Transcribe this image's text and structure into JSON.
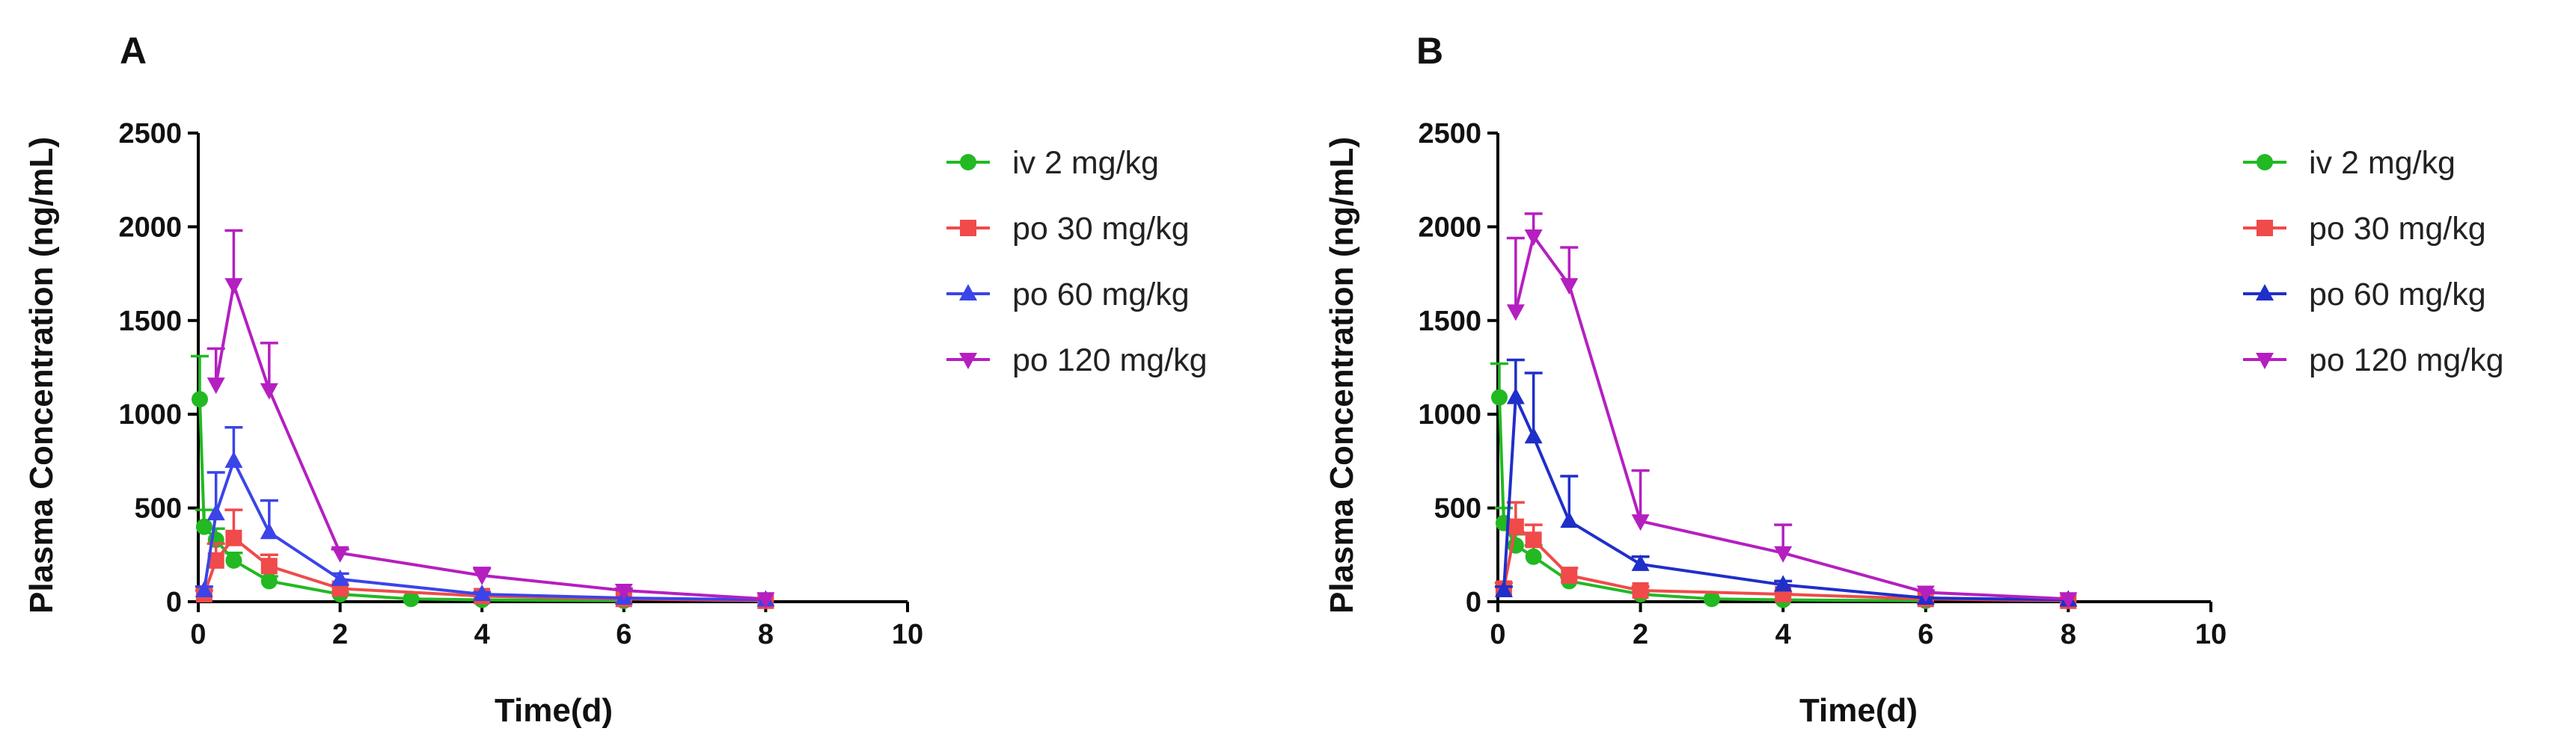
{
  "chart_data": [
    {
      "type": "line",
      "panel_label": "A",
      "xlabel": "Time(d)",
      "ylabel": "Plasma Concentration (ng/mL)",
      "xlim": [
        0,
        10
      ],
      "ylim": [
        0,
        2500
      ],
      "xticks": [
        "0",
        "2",
        "4",
        "6",
        "8",
        "10"
      ],
      "yticks": [
        "0",
        "500",
        "1000",
        "1500",
        "2000",
        "2500"
      ],
      "legend_position": "right",
      "series": [
        {
          "name": "iv 2 mg/kg",
          "color": "#22b922",
          "marker": "circle",
          "x": [
            0.021,
            0.083,
            0.25,
            0.5,
            1,
            2,
            3,
            4,
            6
          ],
          "y": [
            1080,
            400,
            330,
            220,
            110,
            40,
            15,
            10,
            5
          ],
          "err": [
            230,
            90,
            60,
            40,
            25,
            10,
            0,
            0,
            0
          ]
        },
        {
          "name": "po 30 mg/kg",
          "color": "#f04a4a",
          "marker": "square",
          "x": [
            0.083,
            0.25,
            0.5,
            1,
            2,
            4,
            6,
            8
          ],
          "y": [
            40,
            220,
            340,
            190,
            70,
            30,
            15,
            5
          ],
          "err": [
            20,
            90,
            150,
            60,
            20,
            10,
            0,
            0
          ]
        },
        {
          "name": "po 60 mg/kg",
          "color": "#3b44e8",
          "marker": "triangle-up",
          "x": [
            0.083,
            0.25,
            0.5,
            1,
            2,
            4,
            6,
            8
          ],
          "y": [
            60,
            470,
            750,
            370,
            120,
            40,
            20,
            10
          ],
          "err": [
            20,
            220,
            180,
            170,
            30,
            10,
            0,
            0
          ]
        },
        {
          "name": "po 120 mg/kg",
          "color": "#b51fc0",
          "marker": "triangle-down",
          "x": [
            0.25,
            0.5,
            1,
            2,
            4,
            6,
            8
          ],
          "y": [
            1160,
            1690,
            1130,
            260,
            140,
            60,
            15
          ],
          "err": [
            190,
            290,
            250,
            20,
            40,
            10,
            0
          ]
        }
      ]
    },
    {
      "type": "line",
      "panel_label": "B",
      "xlabel": "Time(d)",
      "ylabel": "Plasma Concentration (ng/mL)",
      "xlim": [
        0,
        10
      ],
      "ylim": [
        0,
        2500
      ],
      "xticks": [
        "0",
        "2",
        "4",
        "6",
        "8",
        "10"
      ],
      "yticks": [
        "0",
        "500",
        "1000",
        "1500",
        "2000",
        "2500"
      ],
      "legend_position": "right",
      "series": [
        {
          "name": "iv 2 mg/kg",
          "color": "#22b922",
          "marker": "circle",
          "x": [
            0.021,
            0.083,
            0.25,
            0.5,
            1,
            2,
            3,
            4,
            6
          ],
          "y": [
            1090,
            420,
            300,
            240,
            110,
            40,
            15,
            10,
            5
          ],
          "err": [
            180,
            80,
            60,
            60,
            20,
            10,
            0,
            0,
            0
          ]
        },
        {
          "name": "po 30 mg/kg",
          "color": "#f04a4a",
          "marker": "square",
          "x": [
            0.083,
            0.25,
            0.5,
            1,
            2,
            4,
            6,
            8
          ],
          "y": [
            70,
            400,
            330,
            140,
            60,
            40,
            15,
            5
          ],
          "err": [
            30,
            130,
            80,
            40,
            20,
            10,
            0,
            0
          ]
        },
        {
          "name": "po 60 mg/kg",
          "color": "#1f2fc9",
          "marker": "triangle-up",
          "x": [
            0.083,
            0.25,
            0.5,
            1,
            2,
            4,
            6,
            8
          ],
          "y": [
            60,
            1090,
            880,
            430,
            200,
            90,
            20,
            10
          ],
          "err": [
            20,
            200,
            340,
            240,
            40,
            20,
            0,
            0
          ]
        },
        {
          "name": "po 120 mg/kg",
          "color": "#b51fc0",
          "marker": "triangle-down",
          "x": [
            0.25,
            0.5,
            1,
            2,
            4,
            6,
            8
          ],
          "y": [
            1550,
            1950,
            1690,
            430,
            260,
            50,
            15
          ],
          "err": [
            390,
            120,
            200,
            270,
            150,
            10,
            0
          ]
        }
      ]
    }
  ]
}
